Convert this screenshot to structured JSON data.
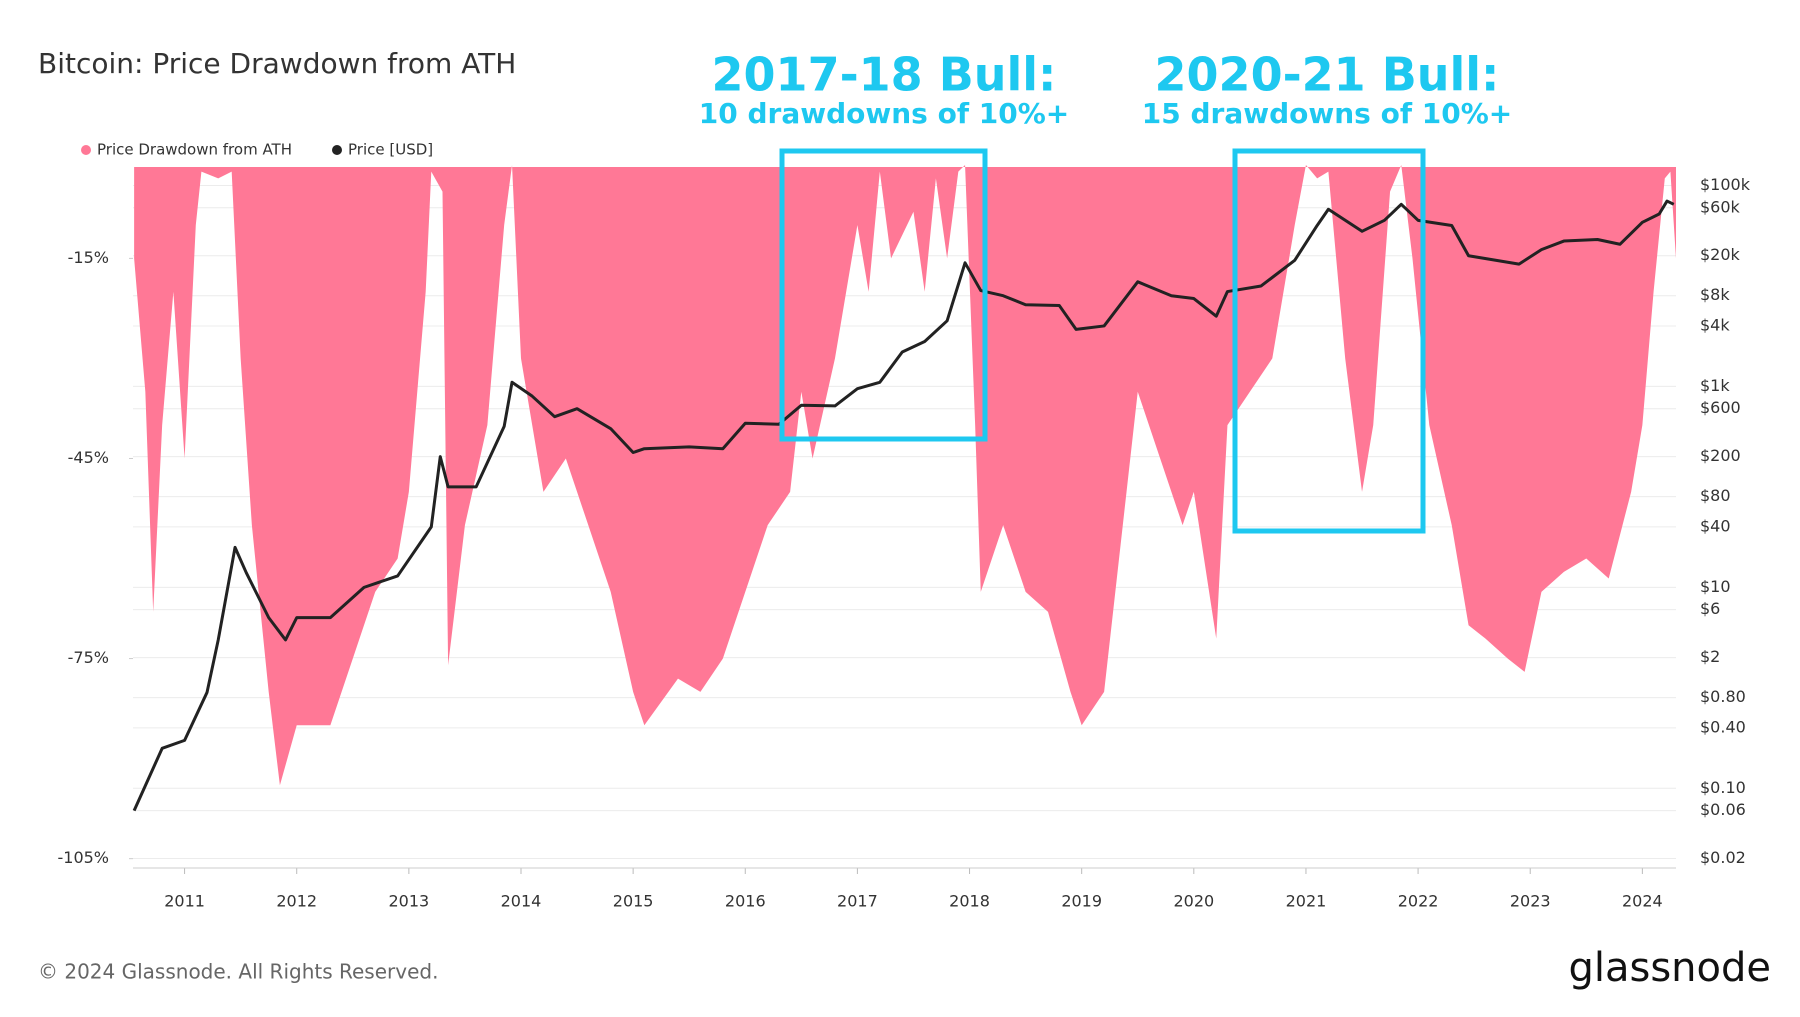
{
  "chart_data": {
    "type": "combo",
    "title": "Bitcoin: Price Drawdown from ATH",
    "annotations": [
      {
        "title": "2017-18 Bull:",
        "text": "10 drawdowns of 10%+"
      },
      {
        "title": "2020-21 Bull:",
        "text": "15 drawdowns of 10%+"
      }
    ],
    "series": [
      {
        "name": "Price Drawdown from ATH",
        "type": "area",
        "color": "#ff7896",
        "x": [
          2010.55,
          2010.65,
          2010.72,
          2010.8,
          2010.9,
          2011.0,
          2011.1,
          2011.15,
          2011.3,
          2011.42,
          2011.5,
          2011.6,
          2011.75,
          2011.85,
          2012.0,
          2012.3,
          2012.5,
          2012.7,
          2012.9,
          2013.0,
          2013.15,
          2013.2,
          2013.3,
          2013.35,
          2013.5,
          2013.7,
          2013.85,
          2013.92,
          2014.0,
          2014.2,
          2014.4,
          2014.6,
          2014.8,
          2015.0,
          2015.1,
          2015.4,
          2015.6,
          2015.8,
          2016.0,
          2016.2,
          2016.4,
          2016.5,
          2016.6,
          2016.8,
          2017.0,
          2017.1,
          2017.2,
          2017.3,
          2017.5,
          2017.6,
          2017.7,
          2017.8,
          2017.9,
          2017.96,
          2018.05,
          2018.1,
          2018.3,
          2018.5,
          2018.7,
          2018.9,
          2019.0,
          2019.2,
          2019.4,
          2019.5,
          2019.7,
          2019.9,
          2020.0,
          2020.2,
          2020.3,
          2020.5,
          2020.7,
          2020.9,
          2021.0,
          2021.1,
          2021.2,
          2021.35,
          2021.5,
          2021.6,
          2021.75,
          2021.85,
          2021.95,
          2022.1,
          2022.3,
          2022.45,
          2022.6,
          2022.8,
          2022.95,
          2023.1,
          2023.3,
          2023.5,
          2023.7,
          2023.9,
          2024.0,
          2024.1,
          2024.2,
          2024.25,
          2024.3
        ],
        "values": [
          -15,
          -35,
          -68,
          -40,
          -20,
          -45,
          -10,
          -2,
          -3,
          -2,
          -30,
          -55,
          -80,
          -94,
          -85,
          -85,
          -75,
          -65,
          -60,
          -50,
          -20,
          -2,
          -5,
          -76,
          -55,
          -40,
          -10,
          -1,
          -30,
          -50,
          -45,
          -55,
          -65,
          -80,
          -85,
          -78,
          -80,
          -75,
          -65,
          -55,
          -50,
          -35,
          -45,
          -30,
          -10,
          -20,
          -2,
          -15,
          -8,
          -20,
          -3,
          -15,
          -2,
          -1,
          -40,
          -65,
          -55,
          -65,
          -68,
          -80,
          -85,
          -80,
          -50,
          -35,
          -45,
          -55,
          -50,
          -72,
          -40,
          -35,
          -30,
          -10,
          -1,
          -3,
          -2,
          -30,
          -50,
          -40,
          -5,
          -1,
          -15,
          -40,
          -55,
          -70,
          -72,
          -75,
          -77,
          -65,
          -62,
          -60,
          -63,
          -50,
          -40,
          -20,
          -3,
          -2,
          -15
        ]
      },
      {
        "name": "Price [USD]",
        "type": "line",
        "axis": "y2",
        "color": "#222222",
        "x": [
          2010.55,
          2010.8,
          2011.0,
          2011.2,
          2011.3,
          2011.45,
          2011.55,
          2011.75,
          2011.9,
          2012.0,
          2012.3,
          2012.6,
          2012.9,
          2013.2,
          2013.28,
          2013.35,
          2013.6,
          2013.85,
          2013.92,
          2014.1,
          2014.3,
          2014.5,
          2014.8,
          2015.0,
          2015.1,
          2015.5,
          2015.8,
          2016.0,
          2016.3,
          2016.5,
          2016.8,
          2017.0,
          2017.2,
          2017.4,
          2017.6,
          2017.8,
          2017.96,
          2018.1,
          2018.3,
          2018.5,
          2018.8,
          2018.95,
          2019.2,
          2019.5,
          2019.8,
          2020.0,
          2020.2,
          2020.3,
          2020.6,
          2020.9,
          2021.1,
          2021.2,
          2021.5,
          2021.7,
          2021.85,
          2022.0,
          2022.3,
          2022.45,
          2022.9,
          2023.1,
          2023.3,
          2023.6,
          2023.8,
          2024.0,
          2024.15,
          2024.22,
          2024.28
        ],
        "values": [
          0.06,
          0.25,
          0.3,
          0.9,
          3,
          25,
          14,
          5,
          3,
          5,
          5,
          10,
          13,
          40,
          200,
          100,
          100,
          400,
          1100,
          800,
          500,
          600,
          380,
          220,
          240,
          250,
          240,
          430,
          420,
          650,
          640,
          950,
          1100,
          2200,
          2800,
          4500,
          17000,
          9000,
          8000,
          6500,
          6400,
          3700,
          4000,
          11000,
          8000,
          7500,
          5000,
          8800,
          10000,
          18000,
          40000,
          58000,
          35000,
          45000,
          65000,
          45000,
          40000,
          20000,
          16500,
          23000,
          28000,
          29000,
          26000,
          43000,
          52000,
          70000,
          65000
        ]
      }
    ],
    "xlim": [
      2010.54,
      2024.3
    ],
    "xticks": [
      2011,
      2012,
      2013,
      2014,
      2015,
      2016,
      2017,
      2018,
      2019,
      2020,
      2021,
      2022,
      2023,
      2024
    ],
    "ylim": [
      -106.4,
      -1.3
    ],
    "yticks": [
      {
        "value": -15,
        "label": "-15%"
      },
      {
        "value": -45,
        "label": "-45%"
      },
      {
        "value": -75,
        "label": "-75%"
      },
      {
        "value": -105,
        "label": "-105%"
      }
    ],
    "y2lim": [
      0.0161,
      152800
    ],
    "y2log": true,
    "y2ticks": [
      {
        "value": 100000,
        "label": "$100k"
      },
      {
        "value": 60000,
        "label": "$60k"
      },
      {
        "value": 20000,
        "label": "$20k"
      },
      {
        "value": 8000,
        "label": "$8k"
      },
      {
        "value": 4000,
        "label": "$4k"
      },
      {
        "value": 1000,
        "label": "$1k"
      },
      {
        "value": 600,
        "label": "$600"
      },
      {
        "value": 200,
        "label": "$200"
      },
      {
        "value": 80,
        "label": "$80"
      },
      {
        "value": 40,
        "label": "$40"
      },
      {
        "value": 10,
        "label": "$10"
      },
      {
        "value": 6,
        "label": "$6"
      },
      {
        "value": 2,
        "label": "$2"
      },
      {
        "value": 0.8,
        "label": "$0.80"
      },
      {
        "value": 0.4,
        "label": "$0.40"
      },
      {
        "value": 0.1,
        "label": "$0.10"
      },
      {
        "value": 0.06,
        "label": "$0.06"
      },
      {
        "value": 0.02,
        "label": "$0.02"
      }
    ],
    "grid": true,
    "footer": "© 2024 Glassnode. All Rights Reserved.",
    "logo": "glassnode"
  }
}
